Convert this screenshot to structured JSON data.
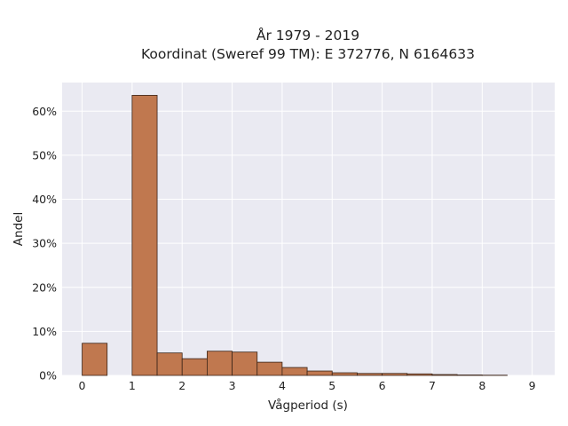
{
  "chart_data": {
    "type": "bar",
    "title": "År 1979 - 2019",
    "subtitle": "Koordinat (Sweref 99 TM): E 372776, N 6164633",
    "xlabel": "Vågperiod (s)",
    "ylabel": "Andel",
    "xlim": [
      -0.4,
      9.45
    ],
    "ylim": [
      0,
      66.5
    ],
    "x_ticks": [
      0,
      1,
      2,
      3,
      4,
      5,
      6,
      7,
      8,
      9
    ],
    "x_tick_labels": [
      "0",
      "1",
      "2",
      "3",
      "4",
      "5",
      "6",
      "7",
      "8",
      "9"
    ],
    "y_ticks": [
      0,
      10,
      20,
      30,
      40,
      50,
      60
    ],
    "y_tick_labels": [
      "0%",
      "10%",
      "20%",
      "30%",
      "40%",
      "50%",
      "60%"
    ],
    "bin_width": 0.5,
    "bins": [
      {
        "x0": 0.0,
        "value": 7.3
      },
      {
        "x0": 1.0,
        "value": 63.6
      },
      {
        "x0": 1.5,
        "value": 5.1
      },
      {
        "x0": 2.0,
        "value": 3.8
      },
      {
        "x0": 2.5,
        "value": 5.5
      },
      {
        "x0": 3.0,
        "value": 5.3
      },
      {
        "x0": 3.5,
        "value": 3.0
      },
      {
        "x0": 4.0,
        "value": 1.8
      },
      {
        "x0": 4.5,
        "value": 1.0
      },
      {
        "x0": 5.0,
        "value": 0.6
      },
      {
        "x0": 5.5,
        "value": 0.45
      },
      {
        "x0": 6.0,
        "value": 0.45
      },
      {
        "x0": 6.5,
        "value": 0.35
      },
      {
        "x0": 7.0,
        "value": 0.2
      },
      {
        "x0": 7.5,
        "value": 0.1
      },
      {
        "x0": 8.0,
        "value": 0.05
      }
    ],
    "grid": true,
    "colors": {
      "bar_fill": "#c0784f",
      "bar_edge": "#3a2418",
      "plot_background": "#eaeaf2",
      "grid": "#ffffff"
    }
  }
}
